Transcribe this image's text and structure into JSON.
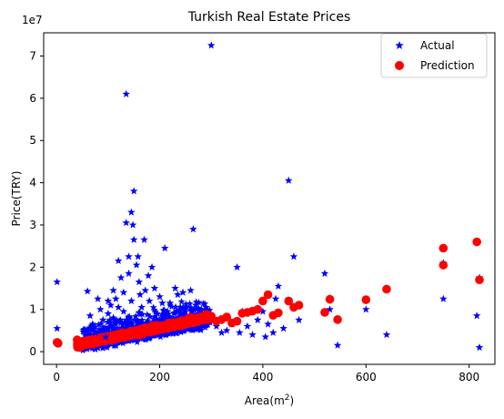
{
  "chart_data": {
    "type": "scatter",
    "title": "Turkish Real Estate Prices",
    "xlabel": "Area(m",
    "xlabel_sup": "2",
    "xlabel_close": ")",
    "ylabel": "Price(TRY)",
    "y_offset_label": "1e7",
    "xlim": [
      -25,
      850
    ],
    "ylim": [
      -3000000,
      75500000
    ],
    "x_ticks": [
      0,
      200,
      400,
      600,
      800
    ],
    "y_ticks": [
      0,
      10000000,
      20000000,
      30000000,
      40000000,
      50000000,
      60000000,
      70000000
    ],
    "y_tick_labels": [
      "0",
      "1",
      "2",
      "3",
      "4",
      "5",
      "6",
      "7"
    ],
    "grid": false,
    "legend_position": "top-right",
    "series": [
      {
        "name": "Actual",
        "marker": "star",
        "color": "#0000ff",
        "points": [
          [
            1,
            16500000
          ],
          [
            1,
            5500000
          ],
          [
            2,
            2000000
          ],
          [
            55,
            5000000
          ],
          [
            60,
            14300000
          ],
          [
            65,
            8500000
          ],
          [
            70,
            6500000
          ],
          [
            75,
            4500000
          ],
          [
            80,
            12500000
          ],
          [
            85,
            10000000
          ],
          [
            90,
            7500000
          ],
          [
            95,
            3500000
          ],
          [
            100,
            5500000
          ],
          [
            100,
            12000000
          ],
          [
            100,
            9000000
          ],
          [
            105,
            11000000
          ],
          [
            110,
            14500000
          ],
          [
            110,
            8000000
          ],
          [
            115,
            6500000
          ],
          [
            115,
            12500000
          ],
          [
            120,
            21500000
          ],
          [
            120,
            10500000
          ],
          [
            125,
            17500000
          ],
          [
            130,
            9500000
          ],
          [
            130,
            14000000
          ],
          [
            135,
            30500000
          ],
          [
            135,
            61000000
          ],
          [
            140,
            22500000
          ],
          [
            140,
            18500000
          ],
          [
            145,
            33000000
          ],
          [
            145,
            12000000
          ],
          [
            148,
            30000000
          ],
          [
            150,
            38000000
          ],
          [
            150,
            26500000
          ],
          [
            155,
            20500000
          ],
          [
            158,
            22500000
          ],
          [
            160,
            16500000
          ],
          [
            162,
            13500000
          ],
          [
            165,
            10500000
          ],
          [
            170,
            26500000
          ],
          [
            172,
            14500000
          ],
          [
            178,
            18000000
          ],
          [
            180,
            12000000
          ],
          [
            185,
            20000000
          ],
          [
            190,
            15000000
          ],
          [
            195,
            9000000
          ],
          [
            200,
            13000000
          ],
          [
            205,
            11500000
          ],
          [
            210,
            24500000
          ],
          [
            215,
            9500000
          ],
          [
            220,
            11500000
          ],
          [
            230,
            15000000
          ],
          [
            235,
            13500000
          ],
          [
            240,
            10500000
          ],
          [
            245,
            14000000
          ],
          [
            250,
            9500000
          ],
          [
            260,
            14500000
          ],
          [
            265,
            29000000
          ],
          [
            270,
            11000000
          ],
          [
            280,
            8500000
          ],
          [
            290,
            10500000
          ],
          [
            300,
            72500000
          ],
          [
            300,
            8000000
          ],
          [
            310,
            6000000
          ],
          [
            320,
            4500000
          ],
          [
            330,
            5000000
          ],
          [
            340,
            6500000
          ],
          [
            350,
            20000000
          ],
          [
            355,
            4500000
          ],
          [
            360,
            9500000
          ],
          [
            370,
            6000000
          ],
          [
            380,
            4000000
          ],
          [
            390,
            7500000
          ],
          [
            400,
            9500000
          ],
          [
            405,
            3500000
          ],
          [
            410,
            6500000
          ],
          [
            420,
            4500000
          ],
          [
            425,
            12500000
          ],
          [
            430,
            15500000
          ],
          [
            440,
            5500000
          ],
          [
            450,
            40500000
          ],
          [
            460,
            22500000
          ],
          [
            470,
            7500000
          ],
          [
            520,
            18500000
          ],
          [
            530,
            12500000
          ],
          [
            530,
            10000000
          ],
          [
            545,
            1500000
          ],
          [
            600,
            10000000
          ],
          [
            640,
            4000000
          ],
          [
            750,
            21000000
          ],
          [
            750,
            12500000
          ],
          [
            815,
            8500000
          ],
          [
            820,
            1000000
          ],
          [
            820,
            17500000
          ]
        ]
      },
      {
        "name": "Prediction",
        "marker": "circle",
        "color": "#ff0000",
        "points": [
          [
            1,
            2200000
          ],
          [
            3,
            2000000
          ],
          [
            40,
            2800000
          ],
          [
            50,
            1800000
          ],
          [
            280,
            8200000
          ],
          [
            290,
            8800000
          ],
          [
            300,
            8400000
          ],
          [
            310,
            7200000
          ],
          [
            320,
            7600000
          ],
          [
            330,
            8200000
          ],
          [
            340,
            6800000
          ],
          [
            350,
            7200000
          ],
          [
            360,
            9100000
          ],
          [
            370,
            9300000
          ],
          [
            380,
            9600000
          ],
          [
            390,
            10000000
          ],
          [
            400,
            12000000
          ],
          [
            410,
            13500000
          ],
          [
            420,
            8600000
          ],
          [
            430,
            9200000
          ],
          [
            450,
            12000000
          ],
          [
            460,
            10500000
          ],
          [
            470,
            11000000
          ],
          [
            520,
            9300000
          ],
          [
            530,
            12400000
          ],
          [
            545,
            7600000
          ],
          [
            600,
            12300000
          ],
          [
            640,
            14800000
          ],
          [
            750,
            24500000
          ],
          [
            750,
            20500000
          ],
          [
            815,
            26000000
          ],
          [
            820,
            17000000
          ]
        ]
      }
    ]
  }
}
